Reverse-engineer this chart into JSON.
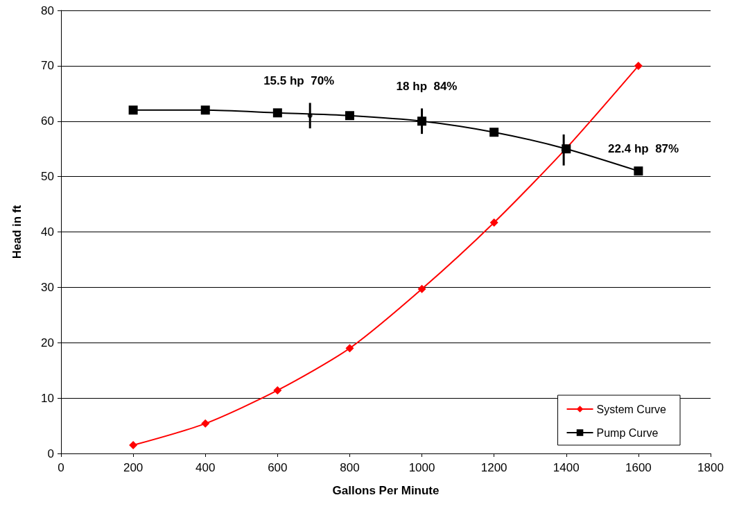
{
  "chart_data": {
    "type": "line",
    "xlabel": "Gallons Per Minute",
    "ylabel": "Head in ft",
    "x": [
      200,
      400,
      600,
      800,
      1000,
      1200,
      1400,
      1600
    ],
    "series": [
      {
        "name": "System Curve",
        "color": "#ff0000",
        "marker": "diamond",
        "values": [
          1.5,
          5.4,
          11.4,
          19.0,
          29.7,
          41.7,
          55.1,
          70.0
        ]
      },
      {
        "name": "Pump Curve",
        "color": "#000000",
        "marker": "square",
        "values": [
          62.0,
          62.0,
          61.5,
          61.0,
          60.0,
          58.0,
          55.0,
          51.0
        ],
        "errors": [
          null,
          null,
          null,
          null,
          2.3,
          null,
          null,
          null
        ]
      },
      {
        "type": "scatter",
        "color": "#000000",
        "marker": "circle",
        "x": [
          690,
          1393
        ],
        "values": [
          61.0,
          54.8
        ],
        "errors": [
          2.3,
          2.8
        ]
      }
    ],
    "annotations": [
      "15.5 hp  70%",
      "18 hp  84%",
      "22.4 hp  87%"
    ],
    "xlim": [
      0,
      1800
    ],
    "xticks": [
      0,
      200,
      400,
      600,
      800,
      1000,
      1200,
      1400,
      1600,
      1800
    ],
    "ylim": [
      0,
      80
    ],
    "yticks": [
      0,
      10,
      20,
      30,
      40,
      50,
      60,
      70,
      80
    ],
    "grid": "y",
    "legend": "bottom right",
    "line_style": "solid"
  }
}
